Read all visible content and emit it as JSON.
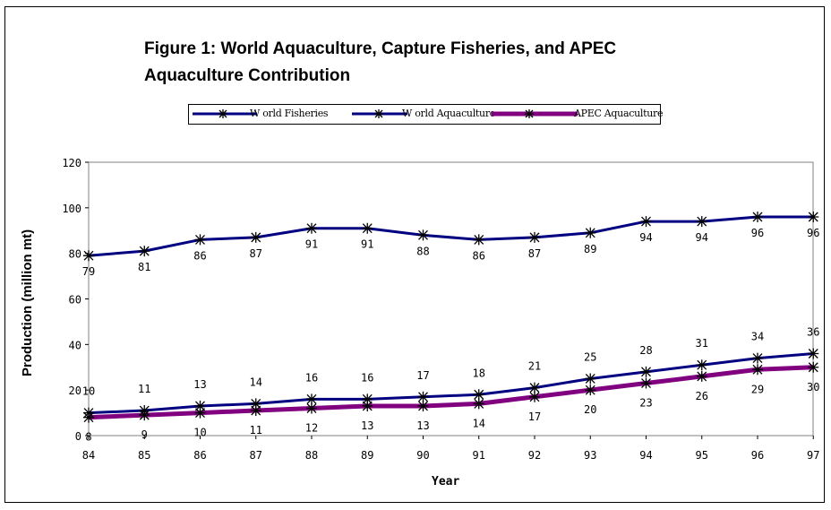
{
  "chart_data": {
    "type": "line",
    "title_lines": [
      "Figure 1: World Aquaculture, Capture Fisheries, and APEC",
      "Aquaculture Contribution"
    ],
    "xlabel": "Year",
    "ylabel": "Production (million mt)",
    "categories": [
      "84",
      "85",
      "86",
      "87",
      "88",
      "89",
      "90",
      "91",
      "92",
      "93",
      "94",
      "95",
      "96",
      "97"
    ],
    "ylim": [
      0,
      120
    ],
    "yticks": [
      "0",
      "20",
      "40",
      "60",
      "80",
      "100",
      "120"
    ],
    "grid": false,
    "legend_position": "top",
    "series": [
      {
        "name": "W orld Fisheries",
        "color": "#000080",
        "values": [
          79,
          81,
          86,
          87,
          91,
          91,
          88,
          86,
          87,
          89,
          94,
          94,
          96,
          96
        ]
      },
      {
        "name": "W orld Aquaculture",
        "color": "#000080",
        "values": [
          10,
          11,
          13,
          14,
          16,
          16,
          17,
          18,
          21,
          25,
          28,
          31,
          34,
          36
        ]
      },
      {
        "name": "APEC Aquaculture",
        "color": "#800080",
        "values": [
          8,
          9,
          10,
          11,
          12,
          13,
          13,
          14,
          17,
          20,
          23,
          26,
          29,
          30
        ]
      }
    ]
  }
}
